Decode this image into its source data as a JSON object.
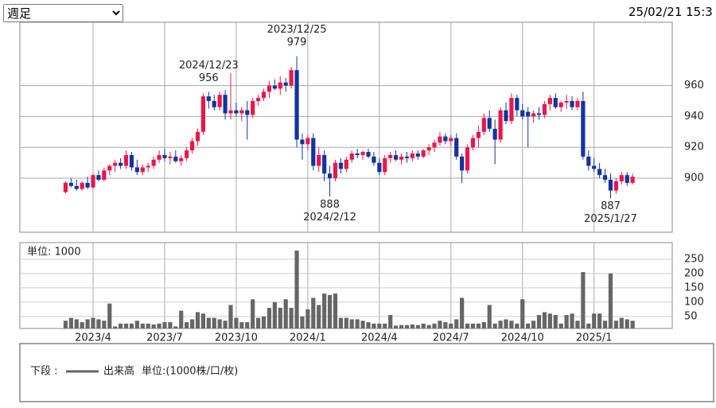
{
  "ui": {
    "period": "週足",
    "timestamp": "25/02/21 15:3"
  },
  "legend": {
    "label": "下段 :",
    "series": "出来高",
    "unit": "単位:(1000株/口/枚)"
  },
  "chart_data": {
    "type": "candlestick",
    "categories": [
      null,
      null,
      null,
      null,
      null,
      "2023/4",
      null,
      null,
      null,
      null,
      null,
      null,
      null,
      null,
      null,
      null,
      null,
      null,
      "2023/7",
      null,
      null,
      null,
      null,
      null,
      null,
      null,
      null,
      null,
      null,
      null,
      null,
      "2023/10",
      null,
      null,
      null,
      null,
      null,
      null,
      null,
      null,
      null,
      null,
      null,
      null,
      "2024/1",
      null,
      null,
      null,
      null,
      null,
      null,
      null,
      null,
      null,
      null,
      null,
      null,
      "2024/4",
      null,
      null,
      null,
      null,
      null,
      null,
      null,
      null,
      null,
      null,
      null,
      null,
      "2024/7",
      null,
      null,
      null,
      null,
      null,
      null,
      null,
      null,
      null,
      null,
      null,
      null,
      "2024/10",
      null,
      null,
      null,
      null,
      null,
      null,
      null,
      null,
      null,
      null,
      null,
      null,
      "2025/1",
      null,
      null,
      null,
      null,
      null,
      null,
      null
    ],
    "open": [
      891,
      897,
      895,
      893,
      897,
      894,
      902,
      899,
      905,
      908,
      910,
      908,
      915,
      907,
      904,
      907,
      908,
      912,
      915,
      913,
      914,
      911,
      913,
      918,
      924,
      930,
      953,
      950,
      946,
      954,
      942,
      944,
      942,
      944,
      941,
      950,
      952,
      956,
      960,
      958,
      962,
      960,
      970,
      925,
      922,
      926,
      908,
      915,
      903,
      900,
      910,
      906,
      912,
      916,
      915,
      917,
      914,
      910,
      904,
      913,
      915,
      912,
      914,
      913,
      916,
      914,
      918,
      920,
      923,
      927,
      924,
      926,
      914,
      905,
      920,
      926,
      930,
      939,
      932,
      925,
      944,
      937,
      952,
      944,
      943,
      940,
      942,
      941,
      948,
      952,
      946,
      949,
      950,
      946,
      950,
      914,
      908,
      906,
      902,
      899,
      892,
      898,
      902,
      897
    ],
    "high": [
      898,
      900,
      899,
      898,
      901,
      903,
      905,
      907,
      909,
      912,
      913,
      918,
      917,
      912,
      909,
      910,
      914,
      918,
      919,
      917,
      918,
      915,
      920,
      926,
      932,
      955,
      956,
      954,
      956,
      957,
      968,
      949,
      946,
      950,
      952,
      954,
      958,
      963,
      964,
      966,
      965,
      972,
      979,
      929,
      928,
      929,
      920,
      918,
      908,
      912,
      913,
      914,
      918,
      919,
      918,
      919,
      917,
      913,
      915,
      917,
      918,
      916,
      917,
      918,
      918,
      919,
      922,
      925,
      930,
      929,
      928,
      929,
      916,
      922,
      928,
      934,
      942,
      944,
      938,
      946,
      949,
      955,
      954,
      948,
      946,
      944,
      946,
      950,
      954,
      955,
      950,
      954,
      953,
      952,
      956,
      918,
      913,
      910,
      906,
      903,
      900,
      904,
      904,
      903
    ],
    "low": [
      890,
      894,
      892,
      892,
      893,
      893,
      898,
      898,
      902,
      904,
      906,
      906,
      905,
      902,
      902,
      904,
      906,
      910,
      911,
      909,
      910,
      908,
      911,
      916,
      921,
      928,
      945,
      944,
      944,
      938,
      938,
      940,
      937,
      925,
      939,
      947,
      950,
      952,
      957,
      954,
      956,
      958,
      920,
      912,
      918,
      905,
      904,
      898,
      888,
      898,
      903,
      904,
      910,
      913,
      912,
      913,
      908,
      902,
      902,
      910,
      911,
      909,
      910,
      911,
      912,
      913,
      915,
      917,
      921,
      922,
      921,
      912,
      897,
      903,
      918,
      920,
      928,
      930,
      909,
      923,
      935,
      935,
      940,
      938,
      920,
      936,
      938,
      939,
      944,
      945,
      943,
      945,
      944,
      944,
      912,
      905,
      904,
      900,
      897,
      887,
      890,
      896,
      895,
      896
    ],
    "close": [
      897,
      895,
      893,
      897,
      894,
      902,
      899,
      905,
      908,
      910,
      908,
      915,
      907,
      904,
      907,
      908,
      912,
      915,
      913,
      914,
      911,
      913,
      918,
      924,
      930,
      953,
      950,
      946,
      954,
      942,
      944,
      942,
      944,
      941,
      950,
      952,
      956,
      960,
      958,
      962,
      960,
      970,
      925,
      922,
      926,
      908,
      915,
      903,
      900,
      910,
      906,
      912,
      916,
      915,
      917,
      914,
      910,
      904,
      913,
      915,
      912,
      914,
      913,
      916,
      914,
      918,
      920,
      923,
      927,
      924,
      926,
      914,
      905,
      920,
      926,
      930,
      939,
      932,
      925,
      944,
      937,
      952,
      944,
      940,
      940,
      942,
      941,
      948,
      952,
      946,
      949,
      950,
      946,
      950,
      914,
      908,
      906,
      902,
      899,
      892,
      898,
      902,
      897,
      901
    ],
    "up_color": "#e8174a",
    "down_color": "#1433a0",
    "ylim": [
      865,
      1001
    ],
    "yticks": [
      900,
      920,
      940,
      960
    ],
    "grid": true,
    "annotations": [
      {
        "label": "2023/12/25",
        "value": 979,
        "color": "#d9534f"
      },
      {
        "label": "2024/2/12",
        "value": 888,
        "color": "#4a7de8"
      },
      {
        "label": "2024/12/23",
        "value": 956,
        "color": "#d9534f"
      },
      {
        "label": "2025/1/27",
        "value": 887,
        "color": "#4a7de8"
      }
    ],
    "volume": {
      "unit_label": "単位: 1000",
      "color": "#666666",
      "ylim": [
        8,
        308
      ],
      "yticks": [
        50,
        100,
        150,
        200,
        250
      ],
      "values": [
        35,
        45,
        40,
        30,
        40,
        45,
        40,
        35,
        95,
        15,
        25,
        25,
        25,
        35,
        25,
        25,
        22,
        25,
        30,
        30,
        15,
        70,
        30,
        40,
        65,
        60,
        45,
        45,
        40,
        35,
        90,
        45,
        30,
        30,
        110,
        45,
        50,
        80,
        100,
        80,
        110,
        80,
        280,
        50,
        75,
        115,
        90,
        130,
        125,
        130,
        45,
        45,
        40,
        40,
        35,
        30,
        25,
        25,
        25,
        55,
        18,
        20,
        20,
        22,
        20,
        25,
        20,
        25,
        35,
        30,
        25,
        40,
        115,
        25,
        25,
        25,
        30,
        90,
        25,
        35,
        40,
        35,
        25,
        110,
        25,
        35,
        55,
        65,
        60,
        55,
        25,
        55,
        60,
        35,
        205,
        25,
        60,
        60,
        35,
        200,
        35,
        45,
        40,
        35
      ]
    }
  }
}
